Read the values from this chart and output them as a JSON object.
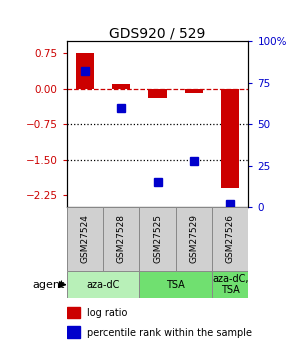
{
  "title": "GDS920 / 529",
  "samples": [
    "GSM27524",
    "GSM27528",
    "GSM27525",
    "GSM27529",
    "GSM27526"
  ],
  "log_ratios": [
    0.75,
    0.1,
    -0.2,
    -0.1,
    -2.1
  ],
  "percentile_ranks": [
    82,
    60,
    15,
    28,
    2
  ],
  "agents": [
    {
      "label": "aza-dC",
      "span": [
        0,
        2
      ],
      "color": "#b8f0b8"
    },
    {
      "label": "TSA",
      "span": [
        2,
        4
      ],
      "color": "#70e070"
    },
    {
      "label": "aza-dC,\nTSA",
      "span": [
        4,
        5
      ],
      "color": "#70e070"
    }
  ],
  "bar_color": "#cc0000",
  "point_color": "#0000cc",
  "ylim_left": [
    -2.5,
    1.0
  ],
  "ylim_right": [
    0,
    100
  ],
  "yticks_left": [
    0.75,
    0.0,
    -0.75,
    -1.5,
    -2.25
  ],
  "yticks_right": [
    100,
    75,
    50,
    25,
    0
  ],
  "hlines": [
    0.0,
    -0.75,
    -1.5
  ],
  "hline_styles": [
    "dashed",
    "dotted",
    "dotted"
  ],
  "hline_colors": [
    "#cc0000",
    "#000000",
    "#000000"
  ],
  "bar_width": 0.5,
  "point_size": 6,
  "background_color": "#ffffff",
  "left_label_color": "#cc0000",
  "right_label_color": "#0000cc",
  "title_color": "#000000",
  "sample_box_color": "#d0d0d0",
  "legend_items": [
    {
      "label": "log ratio",
      "color": "#cc0000"
    },
    {
      "label": "percentile rank within the sample",
      "color": "#0000cc"
    }
  ]
}
